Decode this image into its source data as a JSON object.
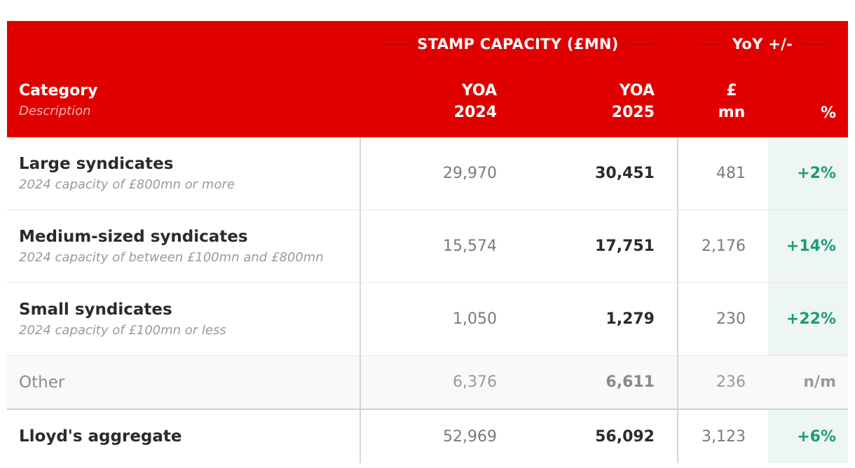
{
  "chart_data": {
    "type": "table",
    "header": {
      "group_stamp": "STAMP CAPACITY (£MN)",
      "group_yoy": "YoY +/-",
      "col_category": "Category",
      "col_description": "Description",
      "col_yoa2024_line1": "YOA",
      "col_yoa2024_line2": "2024",
      "col_yoa2025_line1": "YOA",
      "col_yoa2025_line2": "2025",
      "col_mn_line1": "£",
      "col_mn_line2": "mn",
      "col_pct": "%"
    },
    "rows": [
      {
        "category": "Large syndicates",
        "description": "2024 capacity of £800mn or more",
        "yoa2024": "29,970",
        "yoa2025": "30,451",
        "yoy_mn": "481",
        "yoy_pct": "+2%"
      },
      {
        "category": "Medium-sized syndicates",
        "description": "2024 capacity of between £100mn and £800mn",
        "yoa2024": "15,574",
        "yoa2025": "17,751",
        "yoy_mn": "2,176",
        "yoy_pct": "+14%"
      },
      {
        "category": "Small syndicates",
        "description": "2024 capacity of £100mn or less",
        "yoa2024": "1,050",
        "yoa2025": "1,279",
        "yoy_mn": "230",
        "yoy_pct": "+22%"
      },
      {
        "category": "Other",
        "description": "",
        "yoa2024": "6,376",
        "yoa2025": "6,611",
        "yoy_mn": "236",
        "yoy_pct": "n/m"
      },
      {
        "category": "Lloyd's aggregate",
        "description": "",
        "yoa2024": "52,969",
        "yoa2025": "56,092",
        "yoy_mn": "3,123",
        "yoy_pct": "+6%"
      }
    ]
  },
  "colors": {
    "header_bg": "#e00000",
    "positive_green": "#1f9a78",
    "pct_column_bg": "#eef6f4"
  }
}
